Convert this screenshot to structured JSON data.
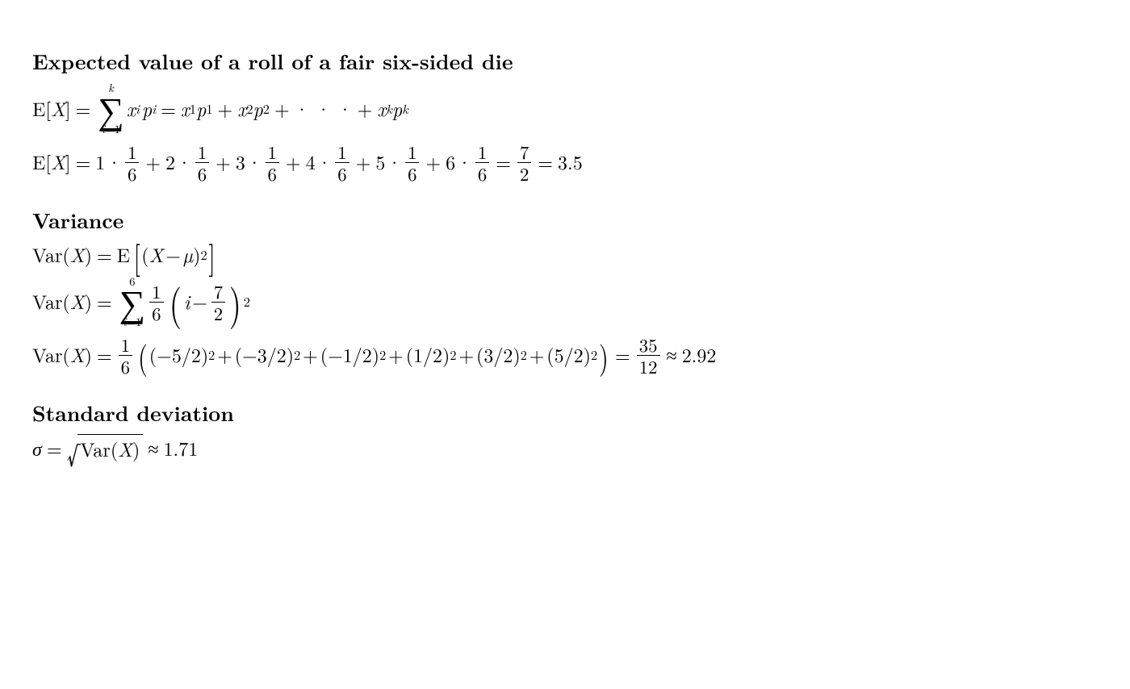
{
  "background_color": "#ffffff",
  "text_color": "#000000",
  "font_family": "Latin Modern Roman / CMU Serif",
  "title_fontsize_pt": 20,
  "body_fontsize_pt": 18,
  "sec1": {
    "title": "Expected value of a roll of a fair six-sided die",
    "eq1_lhs_op": "E",
    "eq1_lhs_var": "X",
    "sum_upper": "k",
    "sum_lower_var": "i",
    "sum_lower_from": "1",
    "summand_x": "x",
    "summand_xsub": "i",
    "summand_p": "p",
    "summand_psub": "i",
    "expansion_terms": [
      {
        "x": "x",
        "xs": "1",
        "p": "p",
        "ps": "1"
      },
      {
        "x": "x",
        "xs": "2",
        "p": "p",
        "ps": "2"
      }
    ],
    "dots": "· · ·",
    "last_term": {
      "x": "x",
      "xs": "k",
      "p": "p",
      "ps": "k"
    },
    "eq2_coeffs": [
      "1",
      "2",
      "3",
      "4",
      "5",
      "6"
    ],
    "eq2_frac_num": "1",
    "eq2_frac_den": "6",
    "eq2_result_num": "7",
    "eq2_result_den": "2",
    "eq2_result_dec": "3.5"
  },
  "sec2": {
    "title": "Variance",
    "lhs_fn": "Var",
    "lhs_var": "X",
    "eq1_op": "E",
    "eq1_inner_var": "X",
    "eq1_mu": "µ",
    "eq1_exp": "2",
    "eq2_sum_upper": "6",
    "eq2_sum_lower_var": "i",
    "eq2_sum_lower_from": "1",
    "eq2_frac_num": "1",
    "eq2_frac_den": "6",
    "eq2_i": "i",
    "eq2_minus_num": "7",
    "eq2_minus_den": "2",
    "eq2_exp": "2",
    "eq3_frac_num": "1",
    "eq3_frac_den": "6",
    "eq3_terms": [
      "−5/2",
      "−3/2",
      "−1/2",
      "1/2",
      "3/2",
      "5/2"
    ],
    "eq3_term_exp": "2",
    "eq3_result_num": "35",
    "eq3_result_den": "12",
    "eq3_approx": "2.92"
  },
  "sec3": {
    "title": "Standard deviation",
    "sigma": "σ",
    "fn": "Var",
    "var": "X",
    "approx": "1.71"
  },
  "sym": {
    "eq": "=",
    "plus": "+",
    "minus": "−",
    "approx": "≈",
    "cdot": "·",
    "lbrack": "[",
    "rbrack": "]",
    "lparen": "(",
    "rparen": ")",
    "sigma_big": "∑",
    "radical": "√"
  }
}
